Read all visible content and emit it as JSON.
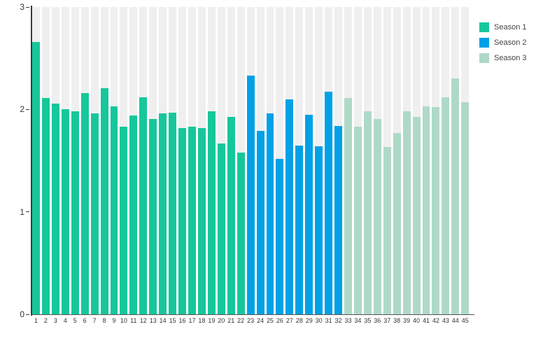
{
  "chart_data": {
    "type": "bar",
    "title": "",
    "xlabel": "",
    "ylabel": "",
    "ylim": [
      0,
      3
    ],
    "y_ticks": [
      "0",
      "1",
      "2",
      "3"
    ],
    "grid": false,
    "legend_position": "top-right",
    "track_color": "#efefef",
    "categories": [
      "1",
      "2",
      "3",
      "4",
      "5",
      "6",
      "7",
      "8",
      "9",
      "10",
      "11",
      "12",
      "13",
      "14",
      "15",
      "16",
      "17",
      "18",
      "19",
      "20",
      "21",
      "22",
      "23",
      "24",
      "25",
      "26",
      "27",
      "28",
      "29",
      "30",
      "31",
      "32",
      "33",
      "34",
      "35",
      "36",
      "37",
      "38",
      "39",
      "40",
      "41",
      "42",
      "43",
      "44",
      "45"
    ],
    "values": [
      2.66,
      2.11,
      2.06,
      2.0,
      1.98,
      2.16,
      1.96,
      2.21,
      2.03,
      1.83,
      1.94,
      2.12,
      1.91,
      1.96,
      1.97,
      1.82,
      1.83,
      1.82,
      1.98,
      1.67,
      1.93,
      1.58,
      2.33,
      1.79,
      1.96,
      1.52,
      2.1,
      1.65,
      1.95,
      1.64,
      2.17,
      1.84,
      2.11,
      1.83,
      1.98,
      1.91,
      1.63,
      1.77,
      1.98,
      1.93,
      2.03,
      2.02,
      2.12,
      2.3,
      2.07
    ],
    "series": [
      {
        "name": "Season 1",
        "color": "#16c79b",
        "start": 1,
        "end": 22
      },
      {
        "name": "Season 2",
        "color": "#00a1e6",
        "start": 23,
        "end": 32
      },
      {
        "name": "Season 3",
        "color": "#afd9c7",
        "start": 33,
        "end": 45
      }
    ]
  }
}
